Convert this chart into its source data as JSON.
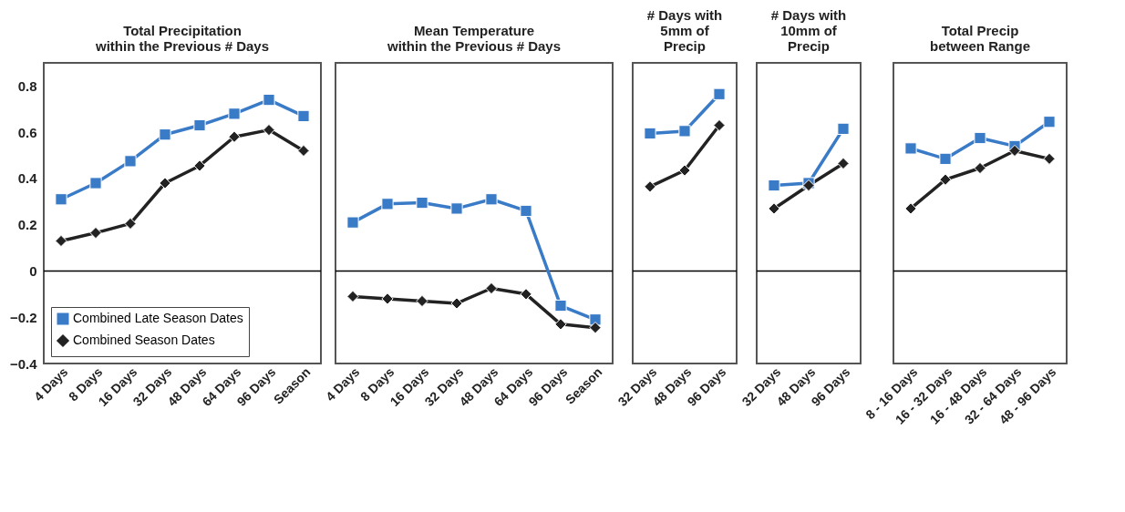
{
  "chart_data": [
    {
      "type": "line",
      "title": "Total Precipitation\nwithin the Previous # Days",
      "categories": [
        "4 Days",
        "8 Days",
        "16 Days",
        "32 Days",
        "48 Days",
        "64 Days",
        "96 Days",
        "Season"
      ],
      "ylim": [
        -0.4,
        0.9
      ],
      "yticks": [
        -0.4,
        -0.2,
        0,
        0.2,
        0.4,
        0.6,
        0.8
      ],
      "legend": "bottom left",
      "ref_lines": [
        {
          "axis": "y",
          "value": 0
        }
      ],
      "series": [
        {
          "name": "Combined Late Season Dates",
          "color": "#3a7bc8",
          "marker": "square",
          "values": [
            0.31,
            0.38,
            0.475,
            0.59,
            0.63,
            0.68,
            0.74,
            0.67
          ]
        },
        {
          "name": "Combined Season Dates",
          "color": "#222222",
          "marker": "diamond",
          "values": [
            0.13,
            0.165,
            0.205,
            0.38,
            0.455,
            0.58,
            0.61,
            0.52
          ]
        }
      ]
    },
    {
      "type": "line",
      "title": "Mean Temperature\nwithin the Previous # Days",
      "categories": [
        "4 Days",
        "8 Days",
        "16 Days",
        "32 Days",
        "48 Days",
        "64 Days",
        "96 Days",
        "Season"
      ],
      "ylim": [
        -0.4,
        0.9
      ],
      "tick_labels": "x",
      "ref_lines": [
        {
          "axis": "y",
          "value": 0
        }
      ],
      "series": [
        {
          "color": "#3a7bc8",
          "marker": "square",
          "values": [
            0.21,
            0.29,
            0.295,
            0.27,
            0.31,
            0.26,
            -0.15,
            -0.21
          ]
        },
        {
          "color": "#222222",
          "marker": "diamond",
          "values": [
            -0.11,
            -0.12,
            -0.13,
            -0.14,
            -0.075,
            -0.1,
            -0.23,
            -0.245
          ]
        }
      ]
    },
    {
      "type": "line",
      "title": "# Days with\n5mm of\nPrecip",
      "categories": [
        "32 Days",
        "48 Days",
        "96 Days"
      ],
      "ylim": [
        -0.4,
        0.9
      ],
      "tick_labels": "x",
      "ref_lines": [
        {
          "axis": "y",
          "value": 0
        }
      ],
      "series": [
        {
          "color": "#3a7bc8",
          "marker": "square",
          "values": [
            0.595,
            0.605,
            0.765
          ]
        },
        {
          "color": "#222222",
          "marker": "diamond",
          "values": [
            0.365,
            0.435,
            0.63
          ]
        }
      ]
    },
    {
      "type": "line",
      "title": "# Days with\n10mm of\nPrecip",
      "categories": [
        "32 Days",
        "48 Days",
        "96 Days"
      ],
      "ylim": [
        -0.4,
        0.9
      ],
      "tick_labels": "x",
      "ref_lines": [
        {
          "axis": "y",
          "value": 0
        }
      ],
      "series": [
        {
          "color": "#3a7bc8",
          "marker": "square",
          "values": [
            0.37,
            0.38,
            0.615
          ]
        },
        {
          "color": "#222222",
          "marker": "diamond",
          "values": [
            0.27,
            0.37,
            0.465
          ]
        }
      ]
    },
    {
      "type": "line",
      "title": "Total Precip\nbetween Range",
      "categories": [
        "8 - 16 Days",
        "16 - 32 Days",
        "16 - 48 Days",
        "32 - 64 Days",
        "48 - 96 Days"
      ],
      "ylim": [
        -0.4,
        0.9
      ],
      "tick_labels": "x",
      "ref_lines": [
        {
          "axis": "y",
          "value": 0
        }
      ],
      "series": [
        {
          "color": "#3a7bc8",
          "marker": "square",
          "values": [
            0.53,
            0.485,
            0.575,
            0.54,
            0.645
          ]
        },
        {
          "color": "#222222",
          "marker": "diamond",
          "values": [
            0.27,
            0.395,
            0.445,
            0.52,
            0.485
          ]
        }
      ]
    }
  ]
}
